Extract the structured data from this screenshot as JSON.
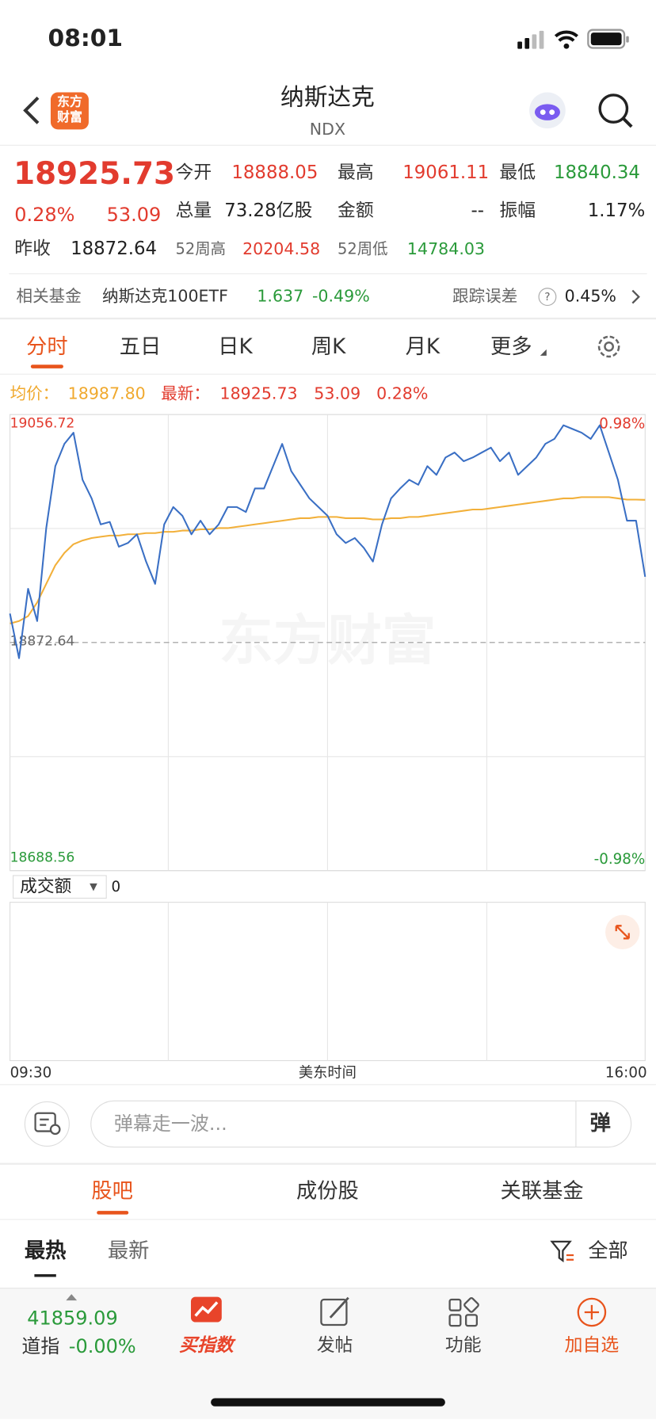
{
  "status": {
    "time": "08:01"
  },
  "header": {
    "logo_line1": "东方",
    "logo_line2": "财富",
    "title": "纳斯达克",
    "subtitle": "NDX"
  },
  "quote": {
    "price": "18925.73",
    "change_pct": "0.28%",
    "change": "53.09",
    "open_label": "今开",
    "open": "18888.05",
    "high_label": "最高",
    "high": "19061.11",
    "low_label": "最低",
    "low": "18840.34",
    "volume_label": "总量",
    "volume": "73.28亿股",
    "amount_label": "金额",
    "amount": "--",
    "amplitude_label": "振幅",
    "amplitude": "1.17%",
    "prev_label": "昨收",
    "prev": "18872.64",
    "w52_high_label": "52周高",
    "w52_high": "20204.58",
    "w52_low_label": "52周低",
    "w52_low": "14784.03"
  },
  "fund": {
    "label": "相关基金",
    "name": "纳斯达克100ETF",
    "price": "1.637",
    "change": "-0.49%",
    "tracking_label": "跟踪误差",
    "help": "?",
    "tracking": "0.45%"
  },
  "period_tabs": [
    "分时",
    "五日",
    "日K",
    "周K",
    "月K",
    "更多"
  ],
  "chart_data": {
    "type": "line",
    "watermark": "东方财富",
    "avg_value": "18987.80",
    "ylim": [
      18688.56,
      19056.72
    ],
    "yticks": [
      18688.56,
      18872.64,
      19056.72
    ],
    "y2lim": [
      -0.98,
      0.98
    ],
    "y2ticks": [
      {
        "value": 0.98,
        "label": "0.98%"
      },
      {
        "value": -0.98,
        "label": "-0.98%"
      }
    ],
    "xticks": [
      "09:30",
      "16:00"
    ],
    "xlabel": "美东时间",
    "series": [
      {
        "name": "最新：",
        "color": "#3a6fc4",
        "values": [
          18896,
          18860,
          18916,
          18890,
          18965,
          19015,
          19033,
          19042,
          19004,
          18989,
          18968,
          18970,
          18950,
          18953,
          18960,
          18938,
          18920,
          18968,
          18982,
          18975,
          18960,
          18971,
          18960,
          18968,
          18982,
          18982,
          18978,
          18997,
          18997,
          19015,
          19033,
          19011,
          19000,
          18989,
          18982,
          18975,
          18960,
          18953,
          18957,
          18949,
          18938,
          18968,
          18989,
          18997,
          19004,
          19000,
          19015,
          19008,
          19022,
          19026,
          19019,
          19022,
          19026,
          19030,
          19019,
          19026,
          19008,
          19015,
          19022,
          19033,
          19037,
          19048,
          19045,
          19042,
          19037,
          19048,
          19026,
          19004,
          18971,
          18971,
          18925.73
        ]
      },
      {
        "name": "均价：",
        "color": "#f2b03a",
        "values": [
          18888,
          18890,
          18894,
          18905,
          18920,
          18935,
          18945,
          18952,
          18955,
          18957,
          18958,
          18959,
          18959,
          18960,
          18960,
          18961,
          18961,
          18962,
          18962,
          18963,
          18963,
          18964,
          18964,
          18965,
          18965,
          18966,
          18967,
          18968,
          18969,
          18970,
          18971,
          18972,
          18973,
          18973,
          18974,
          18974,
          18974,
          18973,
          18973,
          18973,
          18972,
          18972,
          18973,
          18973,
          18974,
          18974,
          18975,
          18976,
          18977,
          18978,
          18979,
          18980,
          18980,
          18981,
          18982,
          18983,
          18984,
          18985,
          18986,
          18987,
          18988,
          18989,
          18989,
          18990,
          18990,
          18990,
          18990,
          18989,
          18988,
          18988,
          18987.8
        ]
      }
    ]
  },
  "volume": {
    "selector": "成交额",
    "arrow": "▼",
    "value": "0"
  },
  "comment": {
    "placeholder": "弹幕走一波...",
    "button": "弹"
  },
  "section_tabs": [
    "股吧",
    "成份股",
    "关联基金"
  ],
  "sub_tabs": [
    "最热",
    "最新"
  ],
  "filter": "全部",
  "bottom": {
    "index_value": "41859.09",
    "index_name": "道指",
    "index_change": "-0.00%",
    "nav": [
      "买指数",
      "发帖",
      "功能",
      "加自选"
    ]
  }
}
